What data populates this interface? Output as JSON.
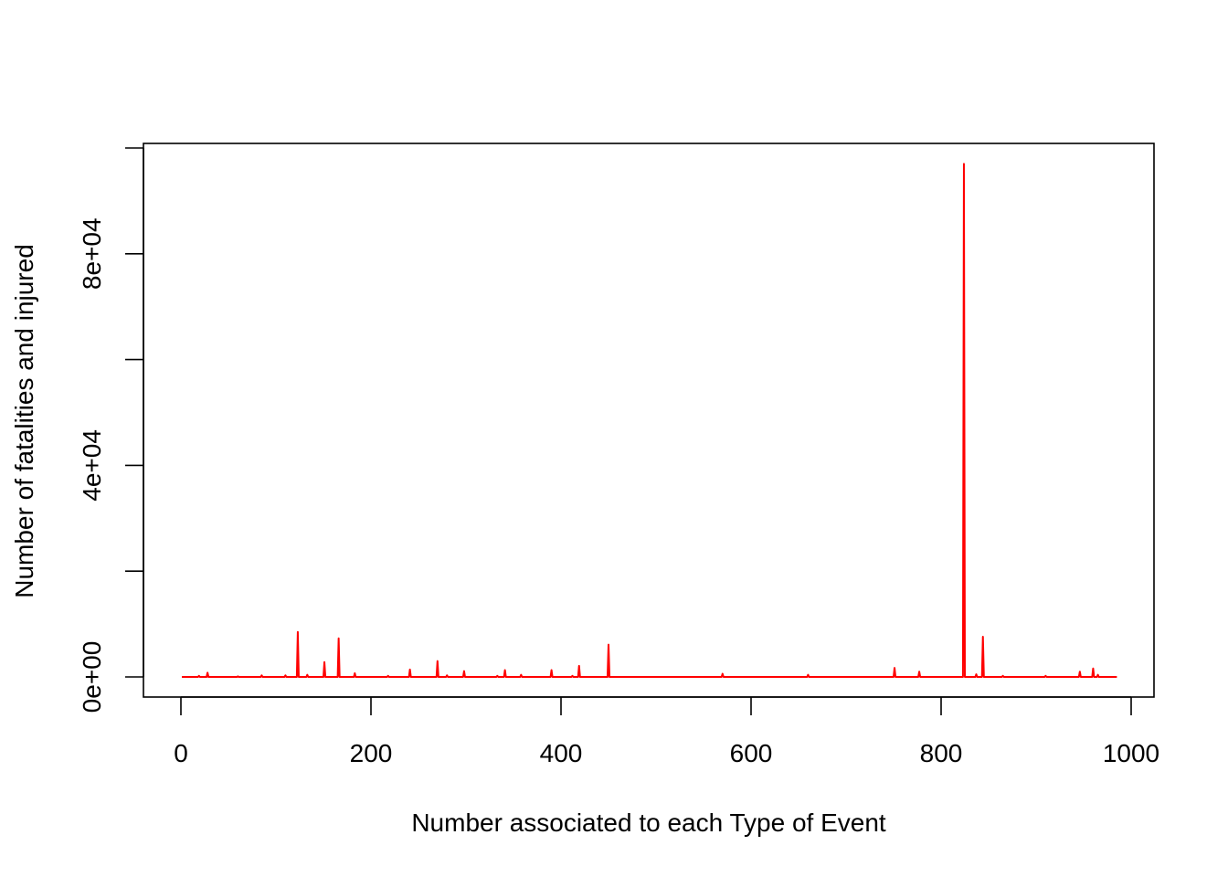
{
  "chart_data": {
    "type": "line",
    "title": "",
    "xlabel": "Number associated to each Type of Event",
    "ylabel": "Number of fatalities and injured",
    "xlim": [
      0,
      985
    ],
    "ylim": [
      0,
      100000
    ],
    "x_ticks": [
      0,
      200,
      400,
      600,
      800,
      1000
    ],
    "y_ticks": [
      0,
      20000,
      40000,
      60000,
      80000,
      100000
    ],
    "y_tick_labels": [
      "0e+00",
      "",
      "4e+04",
      "",
      "8e+04",
      ""
    ],
    "grid": false,
    "line_color": "#ff0000",
    "x_count": 985,
    "baseline": 0,
    "spikes": [
      {
        "x": 19,
        "y": 200
      },
      {
        "x": 28,
        "y": 800
      },
      {
        "x": 60,
        "y": 100
      },
      {
        "x": 85,
        "y": 300
      },
      {
        "x": 110,
        "y": 300
      },
      {
        "x": 123,
        "y": 8500
      },
      {
        "x": 133,
        "y": 400
      },
      {
        "x": 151,
        "y": 2800
      },
      {
        "x": 166,
        "y": 7300
      },
      {
        "x": 183,
        "y": 700
      },
      {
        "x": 218,
        "y": 200
      },
      {
        "x": 241,
        "y": 1400
      },
      {
        "x": 270,
        "y": 3000
      },
      {
        "x": 280,
        "y": 300
      },
      {
        "x": 298,
        "y": 1100
      },
      {
        "x": 333,
        "y": 200
      },
      {
        "x": 341,
        "y": 1300
      },
      {
        "x": 358,
        "y": 400
      },
      {
        "x": 390,
        "y": 1300
      },
      {
        "x": 412,
        "y": 200
      },
      {
        "x": 419,
        "y": 2100
      },
      {
        "x": 450,
        "y": 6100
      },
      {
        "x": 570,
        "y": 600
      },
      {
        "x": 660,
        "y": 400
      },
      {
        "x": 751,
        "y": 1700
      },
      {
        "x": 777,
        "y": 1000
      },
      {
        "x": 824,
        "y": 97000
      },
      {
        "x": 837,
        "y": 500
      },
      {
        "x": 844,
        "y": 7600
      },
      {
        "x": 865,
        "y": 200
      },
      {
        "x": 910,
        "y": 200
      },
      {
        "x": 946,
        "y": 1000
      },
      {
        "x": 960,
        "y": 1600
      },
      {
        "x": 965,
        "y": 400
      }
    ]
  }
}
